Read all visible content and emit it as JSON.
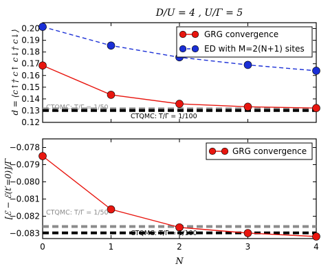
{
  "figure_title": "D/U = 4 ,  U/Γ = 5",
  "colors": {
    "red": "#e8160f",
    "blue": "#1a2fd6",
    "gray": "#8c8c8c",
    "black": "#000000"
  },
  "chart_data": [
    {
      "type": "line",
      "ylabel": "d = ⟨c↑† c↑ c↓† c↓⟩",
      "xlabel": "",
      "xlim": [
        0,
        4
      ],
      "ylim": [
        0.12,
        0.205
      ],
      "xticks": [
        0,
        1,
        2,
        3,
        4
      ],
      "yticks": [
        0.12,
        0.13,
        0.14,
        0.15,
        0.16,
        0.17,
        0.18,
        0.19,
        0.2
      ],
      "ytick_labels": [
        "0.12",
        "0.13",
        "0.14",
        "0.15",
        "0.16",
        "0.17",
        "0.18",
        "0.19",
        "0.20"
      ],
      "legend_position": "top-right",
      "series": [
        {
          "name": "GRG convergence",
          "style": "solid",
          "color": "#e8160f",
          "x": [
            0,
            1,
            2,
            3,
            4
          ],
          "values": [
            0.1685,
            0.1435,
            0.1358,
            0.1333,
            0.1322
          ]
        },
        {
          "name": "ED with M=2(N+1) sites",
          "style": "dashed",
          "color": "#1a2fd6",
          "x": [
            0,
            1,
            2,
            3,
            4
          ],
          "values": [
            0.2015,
            0.1855,
            0.1755,
            0.169,
            0.164
          ]
        }
      ],
      "reference_lines": [
        {
          "label": "CTQMC: T/Γ = 1/50",
          "value": 0.1315,
          "color": "#8c8c8c"
        },
        {
          "label": "CTQMC: T/Γ = 1/100",
          "value": 0.1301,
          "color": "#000000"
        }
      ]
    },
    {
      "type": "line",
      "ylabel": "[ℰ − ℰ(t′=0)]/Γ",
      "xlabel": "N",
      "xlim": [
        0,
        4
      ],
      "ylim": [
        -0.0833,
        -0.0775
      ],
      "xticks": [
        0,
        1,
        2,
        3,
        4
      ],
      "xtick_labels": [
        "0",
        "1",
        "2",
        "3",
        "4"
      ],
      "yticks": [
        -0.083,
        -0.082,
        -0.081,
        -0.08,
        -0.079,
        -0.078
      ],
      "ytick_labels": [
        "−0.083",
        "−0.082",
        "−0.081",
        "−0.080",
        "−0.079",
        "−0.078"
      ],
      "legend_position": "top-right",
      "series": [
        {
          "name": "GRG convergence",
          "style": "solid",
          "color": "#e8160f",
          "x": [
            0,
            1,
            2,
            3,
            4
          ],
          "values": [
            -0.0785,
            -0.0816,
            -0.08265,
            -0.08298,
            -0.08318
          ]
        }
      ],
      "reference_lines": [
        {
          "label": "CTQMC: T/Γ = 1/50",
          "value": -0.0826,
          "color": "#8c8c8c"
        },
        {
          "label": "CTQMC: T/Γ = 1/100",
          "value": -0.08297,
          "color": "#000000"
        }
      ]
    }
  ]
}
